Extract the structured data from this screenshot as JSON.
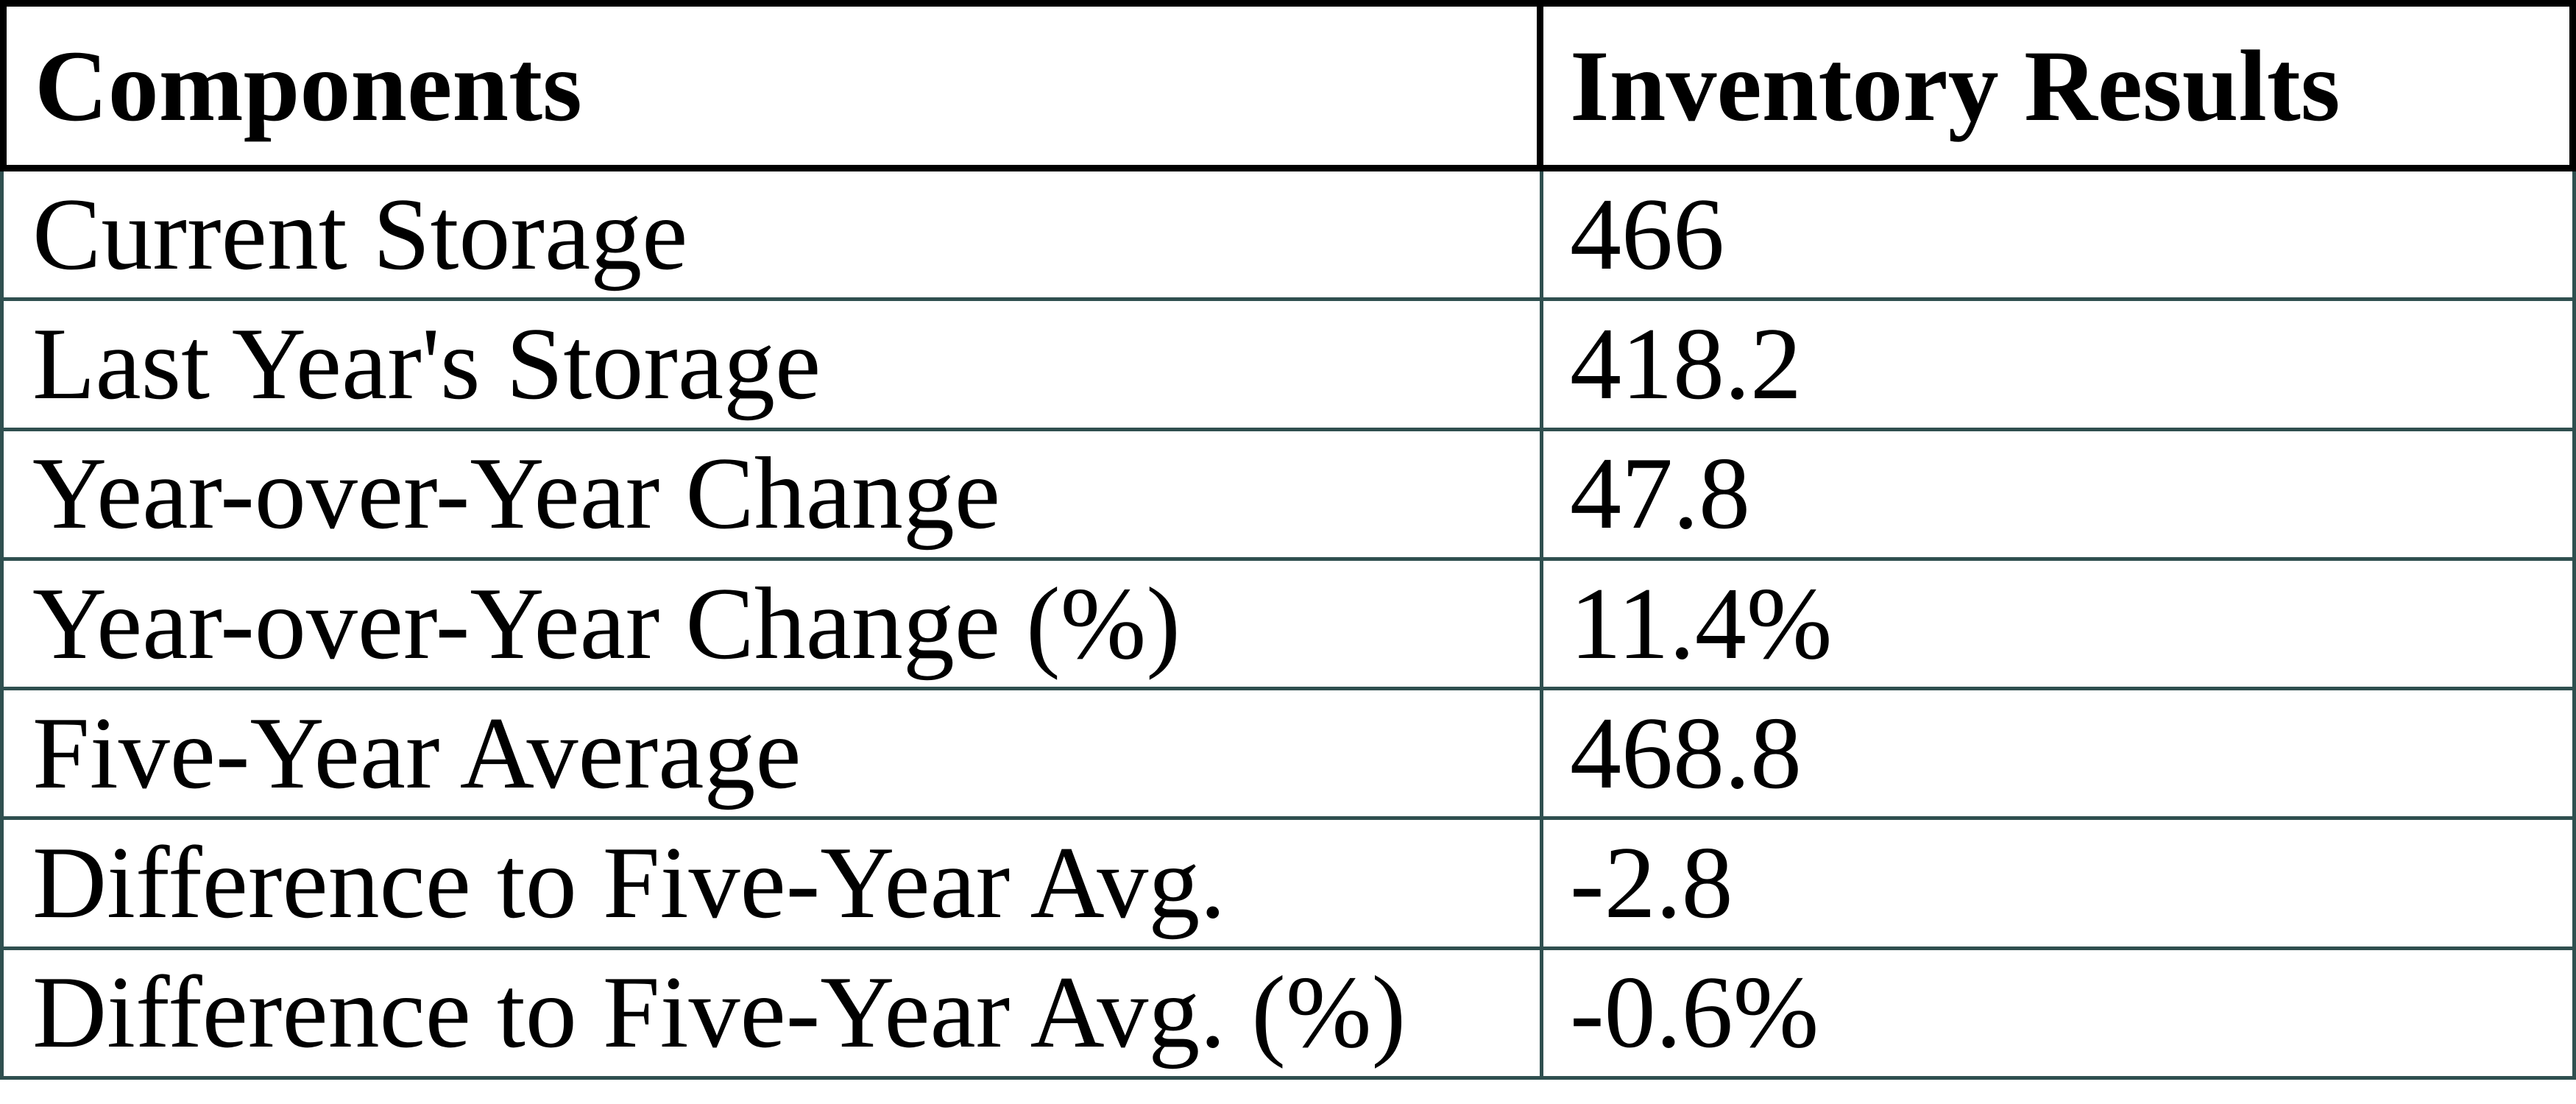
{
  "table": {
    "colors": {
      "header_border": "#000000",
      "body_border": "#2f4f4f",
      "text": "#000000",
      "background": "#ffffff"
    },
    "header": {
      "components": "Components",
      "inventory_results": "Inventory Results"
    },
    "rows": [
      {
        "label": "Current Storage",
        "value": "466"
      },
      {
        "label": "Last Year's Storage",
        "value": "418.2"
      },
      {
        "label": "Year-over-Year Change",
        "value": "47.8"
      },
      {
        "label": "Year-over-Year Change (%)",
        "value": "11.4%"
      },
      {
        "label": "Five-Year Average",
        "value": "468.8"
      },
      {
        "label": "Difference to Five-Year Avg.",
        "value": "-2.8"
      },
      {
        "label": "Difference to Five-Year Avg. (%)",
        "value": "-0.6%"
      }
    ]
  },
  "chart_data": {
    "type": "table",
    "title": "Inventory Results",
    "columns": [
      "Components",
      "Inventory Results"
    ],
    "rows": [
      [
        "Current Storage",
        "466"
      ],
      [
        "Last Year's Storage",
        "418.2"
      ],
      [
        "Year-over-Year Change",
        "47.8"
      ],
      [
        "Year-over-Year Change (%)",
        "11.4%"
      ],
      [
        "Five-Year Average",
        "468.8"
      ],
      [
        "Difference to Five-Year Avg.",
        "-2.8"
      ],
      [
        "Difference to Five-Year Avg. (%)",
        "-0.6%"
      ]
    ],
    "values_numeric": [
      466,
      418.2,
      47.8,
      11.4,
      468.8,
      -2.8,
      -0.6
    ],
    "layout": {
      "header_row": true,
      "grid": "full",
      "header_border_color": "#000000",
      "body_border_color": "#2f4f4f"
    }
  }
}
